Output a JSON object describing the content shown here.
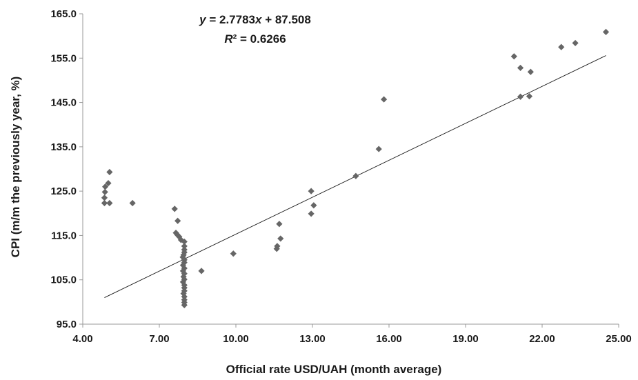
{
  "chart_data": {
    "type": "scatter",
    "xlabel": "Official rate USD/UAH (month average)",
    "ylabel": "CPI (m/m the previously year, %)",
    "xlim": [
      4.0,
      25.0
    ],
    "ylim": [
      95.0,
      165.0
    ],
    "x_ticks": [
      "4.00",
      "7.00",
      "10.00",
      "13.00",
      "16.00",
      "19.00",
      "22.00",
      "25.00"
    ],
    "y_ticks": [
      "95.0",
      "105.0",
      "115.0",
      "125.0",
      "135.0",
      "145.0",
      "155.0",
      "165.0"
    ],
    "grid": false,
    "legend": "none",
    "marker_color": "#666666",
    "trendline": {
      "slope": 2.7783,
      "intercept": 87.508,
      "x_range": [
        4.85,
        24.5
      ],
      "color": "#1a1a1a"
    },
    "equation": {
      "text1_y": "y",
      "text1_mid": " = 2.7783",
      "text1_x": "x",
      "text1_end": " + 87.508",
      "text2_r": "R",
      "text2_end": "² = 0.6266"
    },
    "series": [
      {
        "points": [
          [
            4.85,
            122.3
          ],
          [
            4.85,
            123.5
          ],
          [
            4.87,
            124.8
          ],
          [
            4.88,
            126.0
          ],
          [
            5.0,
            126.8
          ],
          [
            5.05,
            129.3
          ],
          [
            5.05,
            122.3
          ],
          [
            5.95,
            122.3
          ],
          [
            7.6,
            121.0
          ],
          [
            7.72,
            118.3
          ],
          [
            7.65,
            115.6
          ],
          [
            7.7,
            115.2
          ],
          [
            7.78,
            114.7
          ],
          [
            7.85,
            114.0
          ],
          [
            7.98,
            113.6
          ],
          [
            7.98,
            112.6
          ],
          [
            7.98,
            111.8
          ],
          [
            7.98,
            111.2
          ],
          [
            7.95,
            110.6
          ],
          [
            7.92,
            110.1
          ],
          [
            7.98,
            109.5
          ],
          [
            7.98,
            108.9
          ],
          [
            7.93,
            108.3
          ],
          [
            7.98,
            107.6
          ],
          [
            7.93,
            107.0
          ],
          [
            7.98,
            106.4
          ],
          [
            7.95,
            105.7
          ],
          [
            7.98,
            105.1
          ],
          [
            7.93,
            104.5
          ],
          [
            7.98,
            103.8
          ],
          [
            7.98,
            103.2
          ],
          [
            7.98,
            102.5
          ],
          [
            7.95,
            101.9
          ],
          [
            7.98,
            101.2
          ],
          [
            7.98,
            100.5
          ],
          [
            7.98,
            99.9
          ],
          [
            7.98,
            99.3
          ],
          [
            8.65,
            107.0
          ],
          [
            9.9,
            110.9
          ],
          [
            11.6,
            112.0
          ],
          [
            11.62,
            112.6
          ],
          [
            11.7,
            117.6
          ],
          [
            11.75,
            114.3
          ],
          [
            12.95,
            125.0
          ],
          [
            12.95,
            119.9
          ],
          [
            13.05,
            121.8
          ],
          [
            14.7,
            128.4
          ],
          [
            15.6,
            134.5
          ],
          [
            15.8,
            145.7
          ],
          [
            20.9,
            155.4
          ],
          [
            21.15,
            152.8
          ],
          [
            21.15,
            146.3
          ],
          [
            21.55,
            151.9
          ],
          [
            21.5,
            146.4
          ],
          [
            22.75,
            157.5
          ],
          [
            23.3,
            158.4
          ],
          [
            24.5,
            160.9
          ]
        ]
      }
    ]
  }
}
